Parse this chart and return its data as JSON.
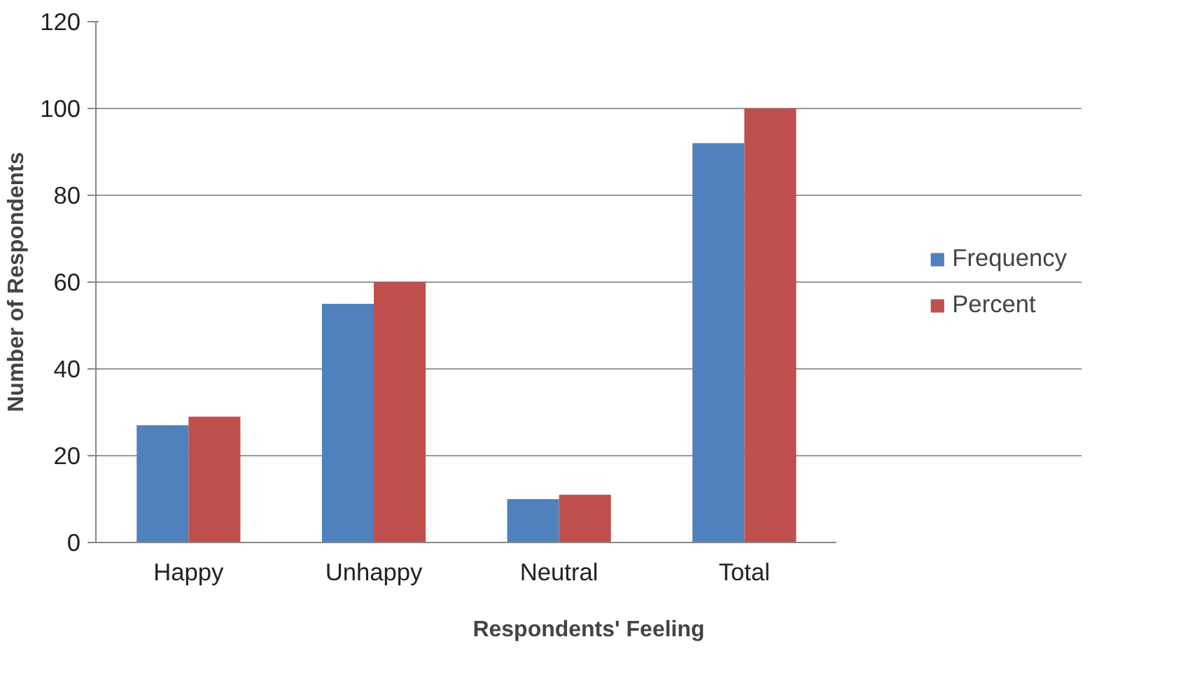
{
  "chart_data": {
    "type": "bar",
    "xlabel": "Respondents' Feeling",
    "ylabel": "Number of Respondents",
    "categories": [
      "Happy",
      "Unhappy",
      "Neutral",
      "Total"
    ],
    "series": [
      {
        "name": "Frequency",
        "color": "#4f81bd",
        "values": [
          27,
          55,
          10,
          92
        ]
      },
      {
        "name": "Percent",
        "color": "#c0504d",
        "values": [
          29,
          60,
          11,
          100
        ]
      }
    ],
    "ylim": [
      0,
      120
    ],
    "yticks": [
      0,
      20,
      40,
      60,
      80,
      100,
      120
    ],
    "grid": "y",
    "legend": "right"
  }
}
